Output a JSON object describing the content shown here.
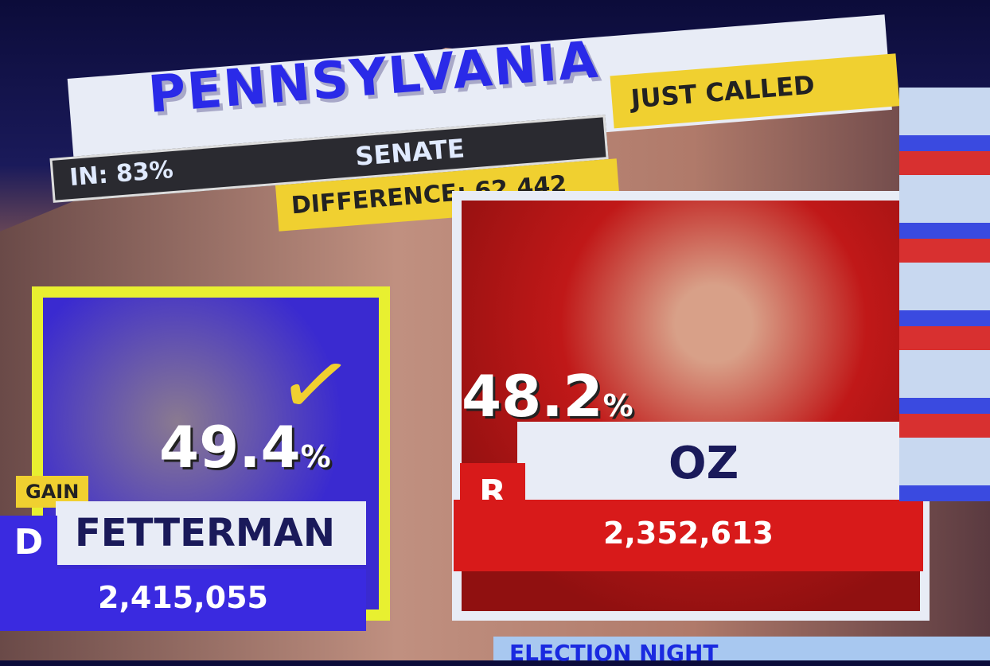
{
  "header": {
    "state": "PENNSYLVANIA",
    "race": "SENATE",
    "reporting": "IN: 83%",
    "status": "JUST CALLED",
    "difference": "DIFFERENCE: 62,442"
  },
  "candidates": [
    {
      "party": "D",
      "name": "FETTERMAN",
      "percent": "49.4",
      "percent_sign": "%",
      "votes": "2,415,055",
      "badge": "GAIN",
      "winner": true,
      "color": "#3a2ae0"
    },
    {
      "party": "R",
      "name": "OZ",
      "percent": "48.2",
      "percent_sign": "%",
      "votes": "2,352,613",
      "color": "#d81a1a"
    }
  ],
  "footer": {
    "text": "ELECTION NIGHT"
  },
  "colors": {
    "accent_yellow": "#f0d030",
    "democrat": "#3a2ae0",
    "republican": "#d81a1a"
  }
}
